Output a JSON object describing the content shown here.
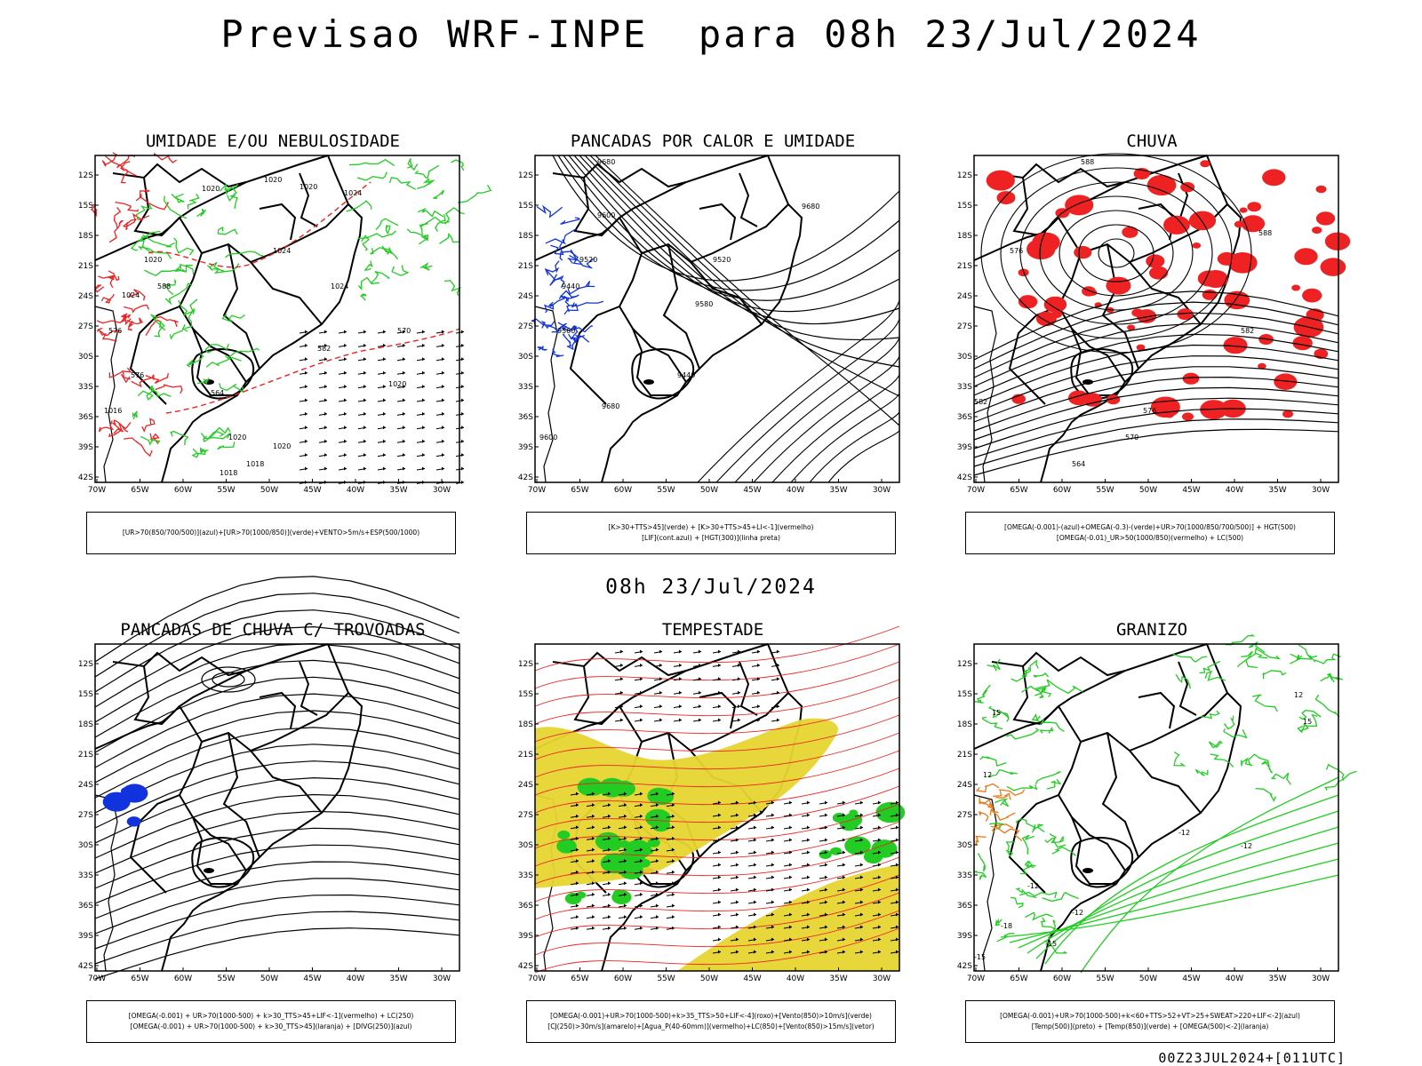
{
  "header": {
    "title": "Previsao WRF-INPE  para 08h 23/Jul/2024"
  },
  "mid_title": "08h 23/Jul/2024",
  "footer": "00Z23JUL2024+[011UTC]",
  "axes": {
    "lat_labels": [
      "12S",
      "15S",
      "18S",
      "21S",
      "24S",
      "27S",
      "30S",
      "33S",
      "36S",
      "39S",
      "42S"
    ],
    "lon_labels": [
      "70W",
      "65W",
      "60W",
      "55W",
      "50W",
      "45W",
      "40W",
      "35W",
      "30W"
    ]
  },
  "colors": {
    "green": "#22cc22",
    "red": "#ee2222",
    "blue": "#1133dd",
    "yellow": "#e6d530",
    "orange": "#ee7711",
    "black": "#000000"
  },
  "panels": [
    {
      "title": "UMIDADE E/OU NEBULOSIDADE",
      "legend": [
        "[UR>70(850/700/500)](azul)+[UR>70(1000/850)](verde)+VENTO>5m/s+ESP(500/1000)"
      ],
      "labels": [
        "1020",
        "1020",
        "1020",
        "1024",
        "1024",
        "1024",
        "1020",
        "1020",
        "1016",
        "1018",
        "1020",
        "1024",
        "576",
        "570",
        "564",
        "582",
        "588",
        "576",
        "1020",
        "1018"
      ]
    },
    {
      "title": "PANCADAS POR CALOR E UMIDADE",
      "legend": [
        "[K>30+TTS>45](verde) + [K>30+TTS>45+LI<-1](vermelho)",
        "[LIF](cont.azul) + [HGT(300)](linha preta)"
      ],
      "labels": [
        "9680",
        "9600",
        "9520",
        "9440",
        "9360",
        "9680",
        "9600",
        "9520",
        "9440",
        "9680",
        "9580"
      ]
    },
    {
      "title": "CHUVA",
      "legend": [
        "[OMEGA(-0.001)-(azul)+OMEGA(-0.3)-(verde)+UR>70(1000/850/700/500)] + HGT(500)",
        "[OMEGA(-0.01)_UR>50(1000/850)(vermelho) + LC(500)"
      ],
      "labels": [
        "588",
        "588",
        "582",
        "576",
        "570",
        "564",
        "582",
        "576"
      ]
    },
    {
      "title": "PANCADAS DE CHUVA C/ TROVOADAS",
      "legend": [
        "[OMEGA(-0.001) + UR>70(1000-500) + k>30_TTS>45+LIF<-1](vermelho) + LC(250)",
        "[OMEGA(-0.001) + UR>70(1000-500) + k>30_TTS>45](laranja) + [DIVG(250)](azul)"
      ],
      "labels": []
    },
    {
      "title": "TEMPESTADE",
      "legend": [
        "[OMEGA(-0.001)+UR>70(1000-500)+k>35_TTS>50+LIF<-4](roxo)+[Vento(850)>10m/s](verde)",
        "[CJ(250)>30m/s](amarelo)+[Agua_P(40-60mm)](vermelho)+LC(850)+[Vento(850)>15m/s](vetor)"
      ],
      "labels": []
    },
    {
      "title": "GRANIZO",
      "legend": [
        "[OMEGA(-0.001)+UR>70(1000-500)+k<60+TTS>52+VT>25+SWEAT>220+LIF<-2](azul)",
        "[Temp(500)](preto) + [Temp(850)](verde) + [OMEGA(500)<-2](laranja)"
      ],
      "labels": [
        "-12",
        "-12",
        "-12",
        "-15",
        "-15",
        "12",
        "12",
        "15",
        "15",
        "-18",
        "-12"
      ]
    }
  ]
}
